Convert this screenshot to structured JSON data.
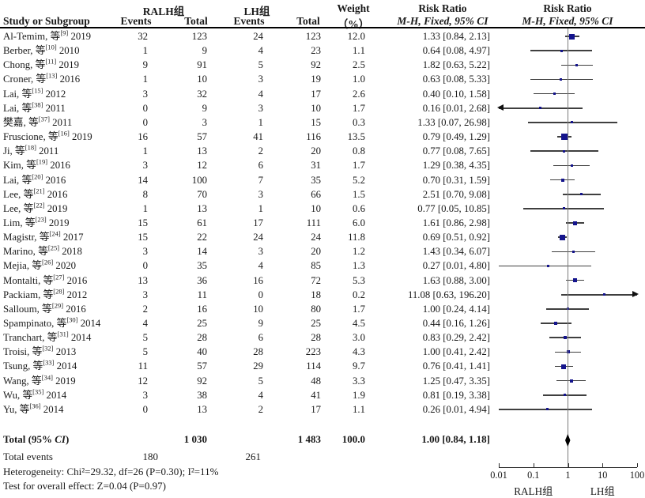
{
  "header": {
    "col_study": "Study or Subgroup",
    "group1": "RALH组",
    "group2": "LH组",
    "events1": "Events",
    "total1": "Total",
    "events2": "Events",
    "total2": "Total",
    "weight_line1": "Weight",
    "weight_line2": "（%）",
    "rr_line1": "Risk Ratio",
    "rr_line2": "M-H, Fixed, 95% CI",
    "plot_rr_line1": "Risk Ratio",
    "plot_rr_line2": "M-H, Fixed, 95% CI"
  },
  "chart_data": {
    "type": "forest",
    "x_scale": "log",
    "x_range": [
      0.01,
      100
    ],
    "rows": [
      {
        "study": "Al-Temim, 等",
        "ref": "[9]",
        "year": "2019",
        "e1": "32",
        "t1": "123",
        "e2": "24",
        "t2": "123",
        "weight": "12.0",
        "ci_text": "1.33 [0.84, 2.13]",
        "rr": 1.33,
        "lo": 0.84,
        "hi": 2.13,
        "arrow": ""
      },
      {
        "study": "Berber, 等",
        "ref": "[10]",
        "year": "2010",
        "e1": "1",
        "t1": "9",
        "e2": "4",
        "t2": "23",
        "weight": "1.1",
        "ci_text": "0.64 [0.08, 4.97]",
        "rr": 0.64,
        "lo": 0.08,
        "hi": 4.97,
        "arrow": ""
      },
      {
        "study": "Chong, 等",
        "ref": "[11]",
        "year": "2019",
        "e1": "9",
        "t1": "91",
        "e2": "5",
        "t2": "92",
        "weight": "2.5",
        "ci_text": "1.82 [0.63, 5.22]",
        "rr": 1.82,
        "lo": 0.63,
        "hi": 5.22,
        "arrow": ""
      },
      {
        "study": "Croner, 等",
        "ref": "[13]",
        "year": "2016",
        "e1": "1",
        "t1": "10",
        "e2": "3",
        "t2": "19",
        "weight": "1.0",
        "ci_text": "0.63 [0.08, 5.33]",
        "rr": 0.63,
        "lo": 0.08,
        "hi": 5.33,
        "arrow": ""
      },
      {
        "study": "Lai, 等",
        "ref": "[15]",
        "year": "2012",
        "e1": "3",
        "t1": "32",
        "e2": "4",
        "t2": "17",
        "weight": "2.6",
        "ci_text": "0.40 [0.10, 1.58]",
        "rr": 0.4,
        "lo": 0.1,
        "hi": 1.58,
        "arrow": ""
      },
      {
        "study": "Lai, 等",
        "ref": "[38]",
        "year": "2011",
        "e1": "0",
        "t1": "9",
        "e2": "3",
        "t2": "10",
        "weight": "1.7",
        "ci_text": "0.16 [0.01, 2.68]",
        "rr": 0.16,
        "lo": 0.01,
        "hi": 2.68,
        "arrow": "left"
      },
      {
        "study": "樊嘉, 等",
        "ref": "[37]",
        "year": "2011",
        "e1": "0",
        "t1": "3",
        "e2": "1",
        "t2": "15",
        "weight": "0.3",
        "ci_text": "1.33 [0.07, 26.98]",
        "rr": 1.33,
        "lo": 0.07,
        "hi": 26.98,
        "arrow": ""
      },
      {
        "study": "Fruscione, 等",
        "ref": "[16]",
        "year": "2019",
        "e1": "16",
        "t1": "57",
        "e2": "41",
        "t2": "116",
        "weight": "13.5",
        "ci_text": "0.79 [0.49, 1.29]",
        "rr": 0.79,
        "lo": 0.49,
        "hi": 1.29,
        "arrow": ""
      },
      {
        "study": "Ji, 等",
        "ref": "[18]",
        "year": "2011",
        "e1": "1",
        "t1": "13",
        "e2": "2",
        "t2": "20",
        "weight": "0.8",
        "ci_text": "0.77 [0.08, 7.65]",
        "rr": 0.77,
        "lo": 0.08,
        "hi": 7.65,
        "arrow": ""
      },
      {
        "study": "Kim, 等",
        "ref": "[19]",
        "year": "2016",
        "e1": "3",
        "t1": "12",
        "e2": "6",
        "t2": "31",
        "weight": "1.7",
        "ci_text": "1.29 [0.38, 4.35]",
        "rr": 1.29,
        "lo": 0.38,
        "hi": 4.35,
        "arrow": ""
      },
      {
        "study": "Lai, 等",
        "ref": "[20]",
        "year": "2016",
        "e1": "14",
        "t1": "100",
        "e2": "7",
        "t2": "35",
        "weight": "5.2",
        "ci_text": "0.70 [0.31, 1.59]",
        "rr": 0.7,
        "lo": 0.31,
        "hi": 1.59,
        "arrow": ""
      },
      {
        "study": "Lee, 等",
        "ref": "[21]",
        "year": "2016",
        "e1": "8",
        "t1": "70",
        "e2": "3",
        "t2": "66",
        "weight": "1.5",
        "ci_text": "2.51 [0.70, 9.08]",
        "rr": 2.51,
        "lo": 0.7,
        "hi": 9.08,
        "arrow": ""
      },
      {
        "study": "Lee, 等",
        "ref": "[22]",
        "year": "2019",
        "e1": "1",
        "t1": "13",
        "e2": "1",
        "t2": "10",
        "weight": "0.6",
        "ci_text": "0.77 [0.05, 10.85]",
        "rr": 0.77,
        "lo": 0.05,
        "hi": 10.85,
        "arrow": ""
      },
      {
        "study": "Lim, 等",
        "ref": "[23]",
        "year": "2019",
        "e1": "15",
        "t1": "61",
        "e2": "17",
        "t2": "111",
        "weight": "6.0",
        "ci_text": "1.61 [0.86, 2.98]",
        "rr": 1.61,
        "lo": 0.86,
        "hi": 2.98,
        "arrow": ""
      },
      {
        "study": "Magistr, 等",
        "ref": "[24]",
        "year": "2017",
        "e1": "15",
        "t1": "22",
        "e2": "24",
        "t2": "24",
        "weight": "11.8",
        "ci_text": "0.69 [0.51, 0.92]",
        "rr": 0.69,
        "lo": 0.51,
        "hi": 0.92,
        "arrow": ""
      },
      {
        "study": "Marino, 等",
        "ref": "[25]",
        "year": "2018",
        "e1": "3",
        "t1": "14",
        "e2": "3",
        "t2": "20",
        "weight": "1.2",
        "ci_text": "1.43 [0.34, 6.07]",
        "rr": 1.43,
        "lo": 0.34,
        "hi": 6.07,
        "arrow": ""
      },
      {
        "study": "Mejia, 等",
        "ref": "[26]",
        "year": "2020",
        "e1": "0",
        "t1": "35",
        "e2": "4",
        "t2": "85",
        "weight": "1.3",
        "ci_text": "0.27 [0.01, 4.80]",
        "rr": 0.27,
        "lo": 0.01,
        "hi": 4.8,
        "arrow": ""
      },
      {
        "study": "Montalti, 等",
        "ref": "[27]",
        "year": "2016",
        "e1": "13",
        "t1": "36",
        "e2": "16",
        "t2": "72",
        "weight": "5.3",
        "ci_text": "1.63 [0.88, 3.00]",
        "rr": 1.63,
        "lo": 0.88,
        "hi": 3.0,
        "arrow": ""
      },
      {
        "study": "Packiam, 等",
        "ref": "[28]",
        "year": "2012",
        "e1": "3",
        "t1": "11",
        "e2": "0",
        "t2": "18",
        "weight": "0.2",
        "ci_text": "11.08 [0.63, 196.20]",
        "rr": 11.08,
        "lo": 0.63,
        "hi": 196.2,
        "arrow": "right"
      },
      {
        "study": "Salloum, 等",
        "ref": "[29]",
        "year": "2016",
        "e1": "2",
        "t1": "16",
        "e2": "10",
        "t2": "80",
        "weight": "1.7",
        "ci_text": "1.00 [0.24, 4.14]",
        "rr": 1.0,
        "lo": 0.24,
        "hi": 4.14,
        "arrow": ""
      },
      {
        "study": "Spampinato, 等",
        "ref": "[30]",
        "year": "2014",
        "e1": "4",
        "t1": "25",
        "e2": "9",
        "t2": "25",
        "weight": "4.5",
        "ci_text": "0.44 [0.16, 1.26]",
        "rr": 0.44,
        "lo": 0.16,
        "hi": 1.26,
        "arrow": ""
      },
      {
        "study": "Tranchart, 等",
        "ref": "[31]",
        "year": "2014",
        "e1": "5",
        "t1": "28",
        "e2": "6",
        "t2": "28",
        "weight": "3.0",
        "ci_text": "0.83 [0.29, 2.42]",
        "rr": 0.83,
        "lo": 0.29,
        "hi": 2.42,
        "arrow": ""
      },
      {
        "study": "Troisi, 等",
        "ref": "[32]",
        "year": "2013",
        "e1": "5",
        "t1": "40",
        "e2": "28",
        "t2": "223",
        "weight": "4.3",
        "ci_text": "1.00 [0.41, 2.42]",
        "rr": 1.0,
        "lo": 0.41,
        "hi": 2.42,
        "arrow": ""
      },
      {
        "study": "Tsung, 等",
        "ref": "[33]",
        "year": "2014",
        "e1": "11",
        "t1": "57",
        "e2": "29",
        "t2": "114",
        "weight": "9.7",
        "ci_text": "0.76 [0.41, 1.41]",
        "rr": 0.76,
        "lo": 0.41,
        "hi": 1.41,
        "arrow": ""
      },
      {
        "study": "Wang, 等",
        "ref": "[34]",
        "year": "2019",
        "e1": "12",
        "t1": "92",
        "e2": "5",
        "t2": "48",
        "weight": "3.3",
        "ci_text": "1.25 [0.47, 3.35]",
        "rr": 1.25,
        "lo": 0.47,
        "hi": 3.35,
        "arrow": ""
      },
      {
        "study": "Wu, 等",
        "ref": "[35]",
        "year": "2014",
        "e1": "3",
        "t1": "38",
        "e2": "4",
        "t2": "41",
        "weight": "1.9",
        "ci_text": "0.81 [0.19, 3.38]",
        "rr": 0.81,
        "lo": 0.19,
        "hi": 3.38,
        "arrow": ""
      },
      {
        "study": "Yu, 等",
        "ref": "[36]",
        "year": "2014",
        "e1": "0",
        "t1": "13",
        "e2": "2",
        "t2": "17",
        "weight": "1.1",
        "ci_text": "0.26 [0.01, 4.94]",
        "rr": 0.26,
        "lo": 0.01,
        "hi": 4.94,
        "arrow": ""
      }
    ],
    "total": {
      "rr": 1.0,
      "lo": 0.84,
      "hi": 1.18
    },
    "axis": {
      "ticks": [
        "0.01",
        "0.1",
        "1",
        "10",
        "100"
      ],
      "tick_values": [
        0.01,
        0.1,
        1,
        10,
        100
      ],
      "label_left": "RALH组",
      "label_right": "LH组"
    }
  },
  "footer": {
    "total_label_pre": "Total (95% ",
    "total_label_ci": "CI",
    "total_label_post": ")",
    "total_t1": "1 030",
    "total_t2": "1 483",
    "total_weight": "100.0",
    "total_ci_text": "1.00 [0.84, 1.18]",
    "total_events_label": "Total events",
    "total_events_1": "180",
    "total_events_2": "261",
    "heterogeneity": "Heterogeneity: Chi²=29.32, df=26 (P=0.30); I²=11%",
    "overall_effect": "Test for overall effect: Z=0.04 (P=0.97)"
  },
  "colors": {
    "marker": "#14148c",
    "ci_line": "#3f3f3f",
    "axis": "#2b2b2b",
    "diamond": "#000000",
    "center_line": "#7a7a7a"
  }
}
